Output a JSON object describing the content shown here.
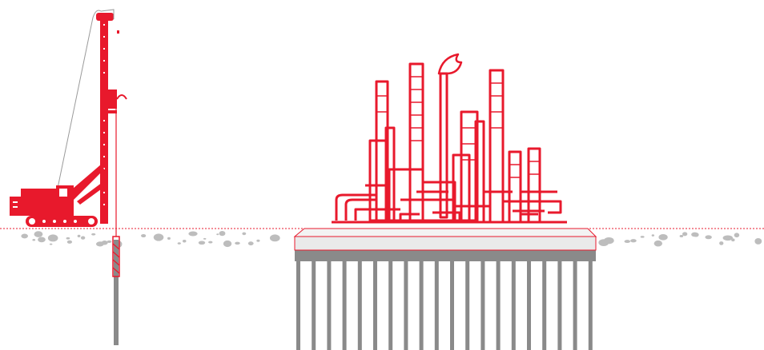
{
  "colors": {
    "red": "#e8192c",
    "gray": "#8a8a8a",
    "light_gray": "#c4c4c4",
    "slab": "#ececec",
    "white": "#ffffff"
  },
  "icons": {
    "drilling_rig": "piling-rig-icon",
    "factory": "refinery-icon",
    "flame": "flare-flame-icon"
  }
}
